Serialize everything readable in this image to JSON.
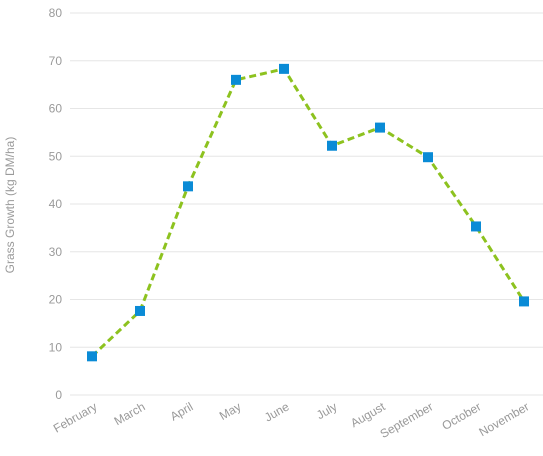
{
  "chart_data": {
    "type": "line",
    "categories": [
      "February",
      "March",
      "April",
      "May",
      "June",
      "July",
      "August",
      "September",
      "October",
      "November"
    ],
    "series": [
      {
        "values": [
          8.1,
          17.6,
          43.7,
          66.0,
          68.3,
          52.2,
          56.0,
          49.8,
          35.3,
          19.6
        ],
        "line_color": "#8dc21f",
        "line_style": "dashed",
        "marker": "square",
        "marker_color": "#0a8bd6"
      }
    ],
    "xlabel": "",
    "ylabel": "Grass Growth (kg DM/ha)",
    "ylim": [
      0,
      80
    ],
    "yticks": [
      0,
      10,
      20,
      30,
      40,
      50,
      60,
      70,
      80
    ],
    "grid": "horizontal",
    "legend": "none",
    "colors": {
      "grid": "#e6e6e6",
      "text": "#9a9a9a"
    }
  }
}
